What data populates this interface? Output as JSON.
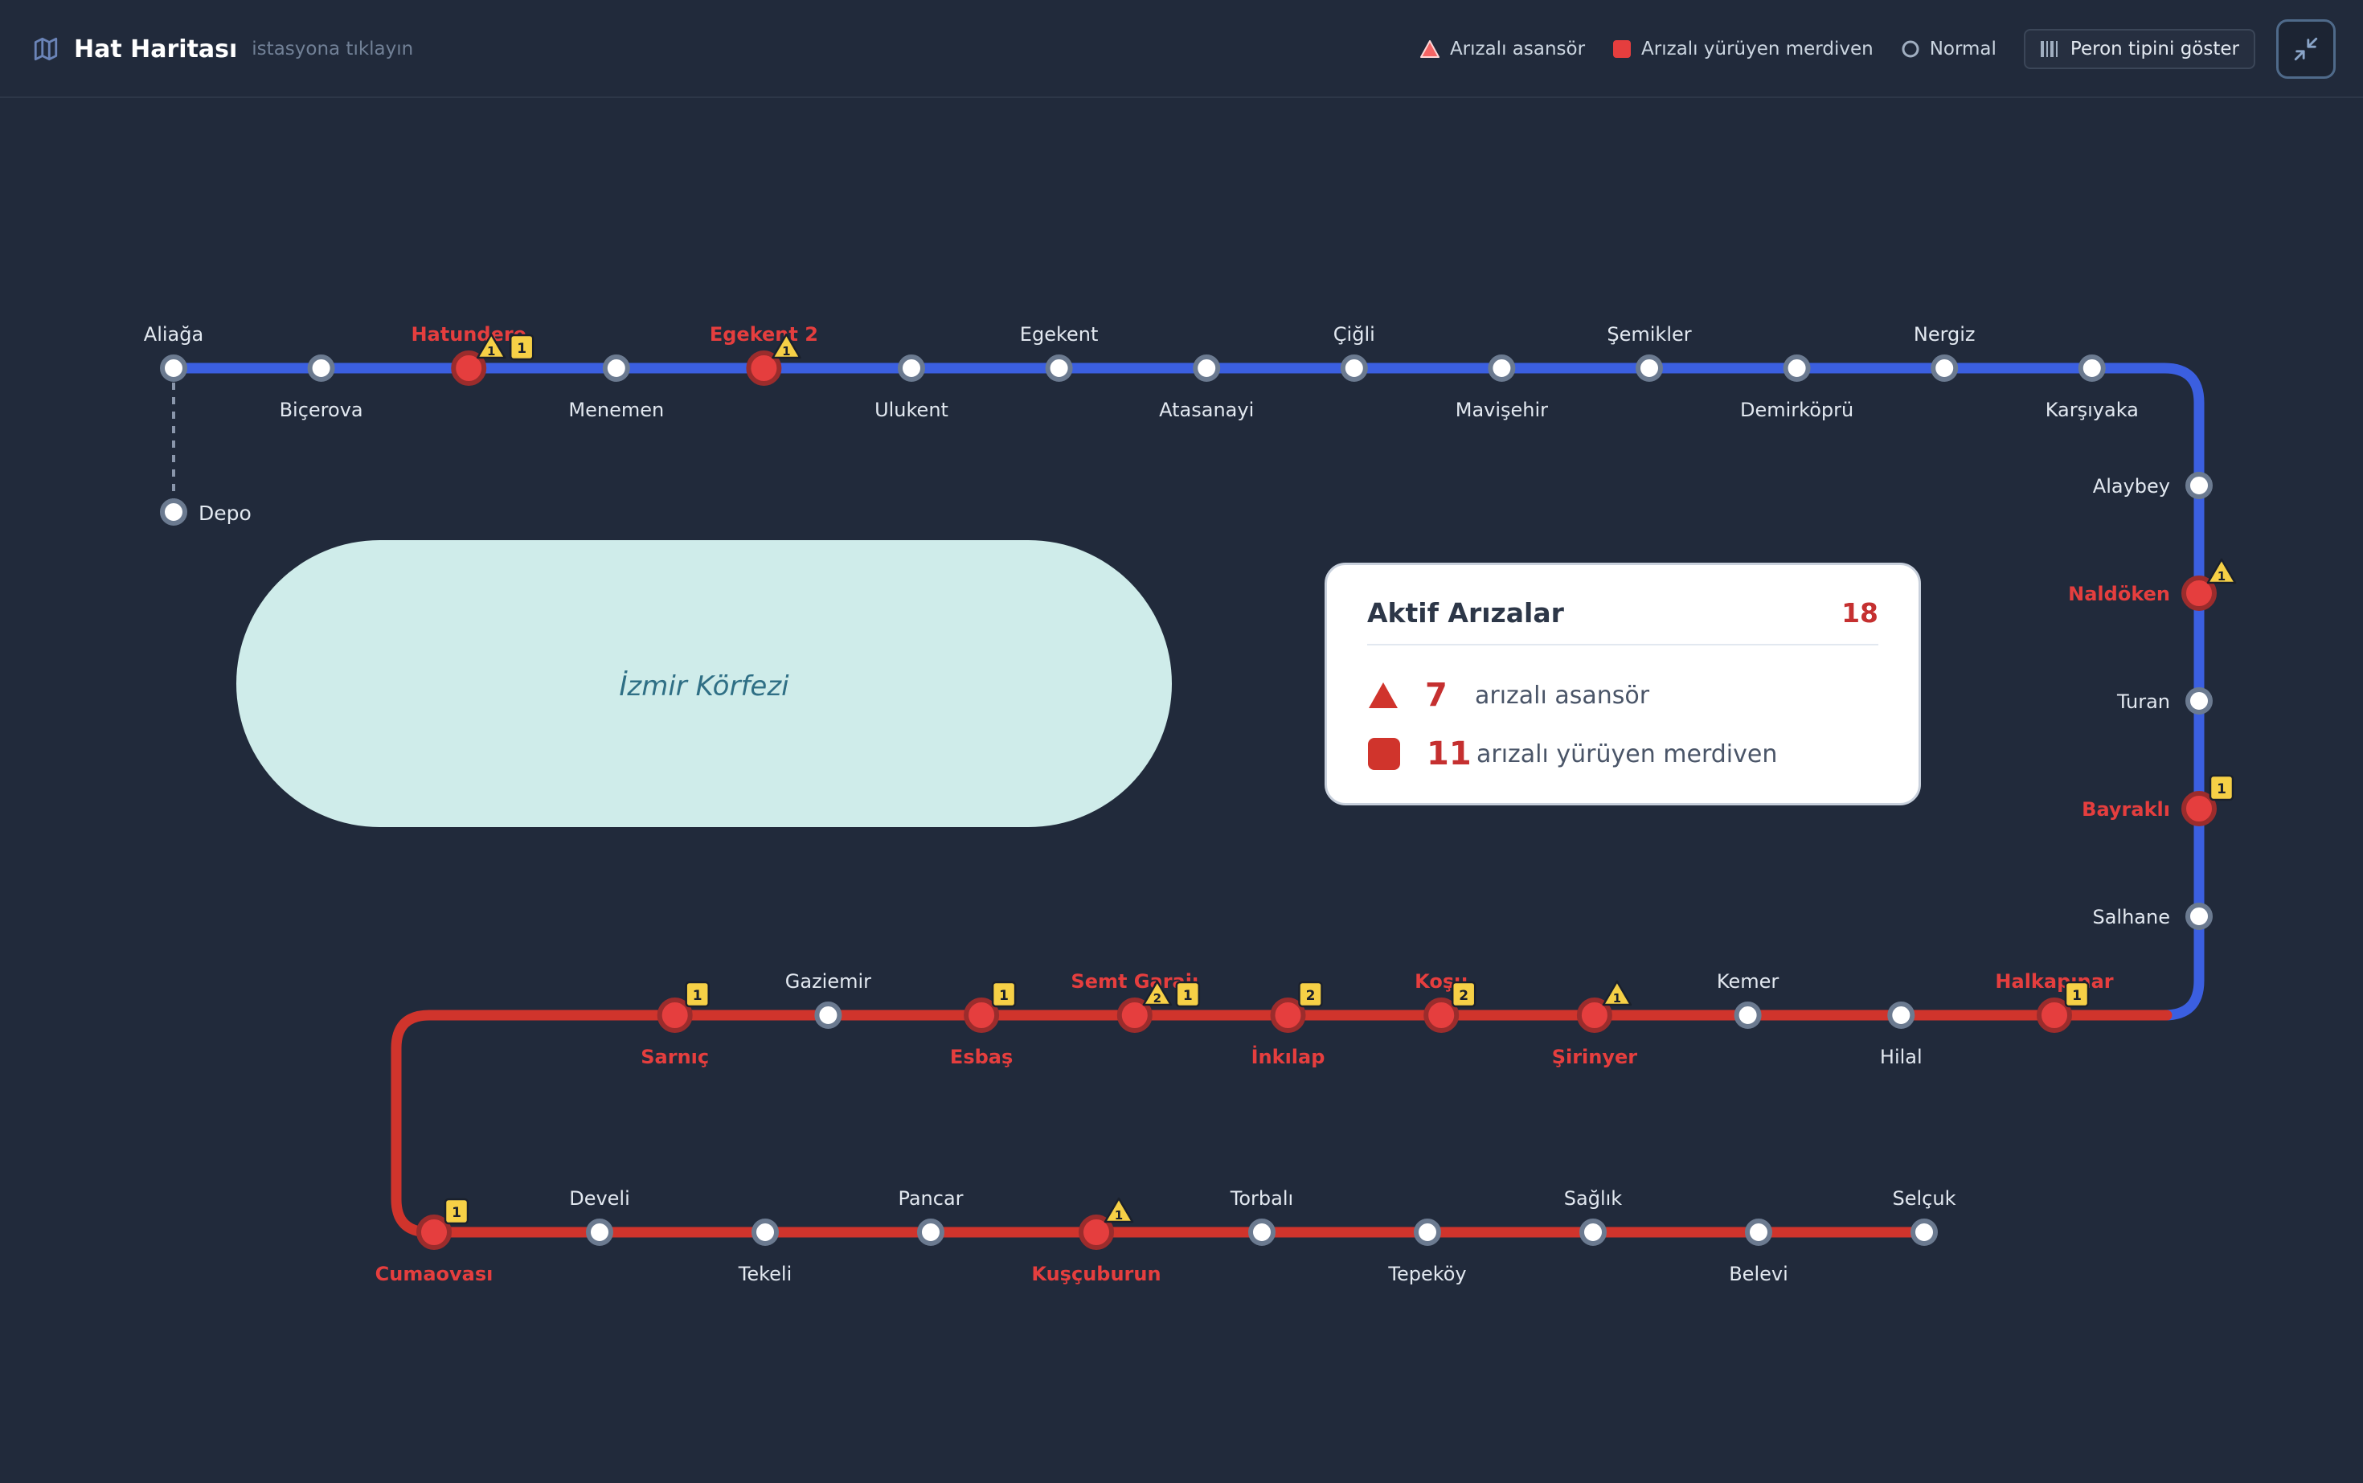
{
  "header": {
    "title": "Hat Haritası",
    "subtitle": "istasyona tıklayın",
    "legend": {
      "elevator": "Arızalı asansör",
      "escalator": "Arızalı yürüyen merdiven",
      "normal": "Normal"
    },
    "platform_button": "Peron tipini göster",
    "collapse_icon": "collapse-icon"
  },
  "colors": {
    "background": "#212a3b",
    "line_north": "#3b5fe0",
    "line_south": "#d0342c",
    "fault": "#e53e3e",
    "badge": "#f6d046"
  },
  "bay": {
    "label": "İzmir Körfezi"
  },
  "summary": {
    "title": "Aktif Arızalar",
    "total": "18",
    "elevator_count": "7",
    "elevator_label": "arızalı asansör",
    "escalator_count": "11",
    "escalator_label": "arızalı yürüyen merdiven"
  },
  "stations": [
    {
      "name": "Aliağa",
      "fault": false
    },
    {
      "name": "Biçerova",
      "fault": false
    },
    {
      "name": "Hatundere",
      "fault": true,
      "elevator": 1,
      "escalator": 1
    },
    {
      "name": "Menemen",
      "fault": false
    },
    {
      "name": "Egekent 2",
      "fault": true,
      "elevator": 1
    },
    {
      "name": "Ulukent",
      "fault": false
    },
    {
      "name": "Egekent",
      "fault": false
    },
    {
      "name": "Atasanayi",
      "fault": false
    },
    {
      "name": "Çiğli",
      "fault": false
    },
    {
      "name": "Mavişehir",
      "fault": false
    },
    {
      "name": "Şemikler",
      "fault": false
    },
    {
      "name": "Demirköprü",
      "fault": false
    },
    {
      "name": "Nergiz",
      "fault": false
    },
    {
      "name": "Karşıyaka",
      "fault": false
    },
    {
      "name": "Alaybey",
      "fault": false
    },
    {
      "name": "Naldöken",
      "fault": true,
      "elevator": 1
    },
    {
      "name": "Turan",
      "fault": false
    },
    {
      "name": "Bayraklı",
      "fault": true,
      "escalator": 1
    },
    {
      "name": "Salhane",
      "fault": false
    },
    {
      "name": "Halkapınar",
      "fault": true,
      "escalator": 1
    },
    {
      "name": "Hilal",
      "fault": false
    },
    {
      "name": "Kemer",
      "fault": false
    },
    {
      "name": "Şirinyer",
      "fault": true,
      "elevator": 1
    },
    {
      "name": "Koşu",
      "fault": true,
      "escalator": 2
    },
    {
      "name": "İnkılap",
      "fault": true,
      "escalator": 2
    },
    {
      "name": "Semt Garajı",
      "fault": true,
      "elevator": 2,
      "escalator": 1
    },
    {
      "name": "Esbaş",
      "fault": true,
      "escalator": 1
    },
    {
      "name": "Gaziemir",
      "fault": false
    },
    {
      "name": "Sarnıç",
      "fault": true,
      "escalator": 1
    },
    {
      "name": "Cumaovası",
      "fault": true,
      "escalator": 1
    },
    {
      "name": "Develi",
      "fault": false
    },
    {
      "name": "Tekeli",
      "fault": false
    },
    {
      "name": "Pancar",
      "fault": false
    },
    {
      "name": "Kuşçuburun",
      "fault": true,
      "elevator": 1
    },
    {
      "name": "Torbalı",
      "fault": false
    },
    {
      "name": "Tepeköy",
      "fault": false
    },
    {
      "name": "Sağlık",
      "fault": false
    },
    {
      "name": "Belevi",
      "fault": false
    },
    {
      "name": "Selçuk",
      "fault": false
    }
  ],
  "depot": {
    "name": "Depo"
  }
}
